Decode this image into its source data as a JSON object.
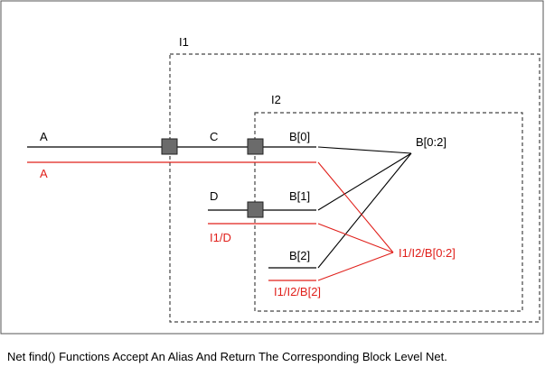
{
  "colors": {
    "black": "#000000",
    "red": "#e0201b",
    "port_fill": "#6b6b6b",
    "frame": "#555555"
  },
  "instances": {
    "outer": "I1",
    "inner": "I2"
  },
  "nets": {
    "a": "A",
    "c": "C",
    "d": "D",
    "b0": "B[0]",
    "b1": "B[1]",
    "b2": "B[2]",
    "bus": "B[0:2]"
  },
  "aliases": {
    "a": "A",
    "d": "I1/D",
    "b2": "I1/I2/B[2]",
    "bus": "I1/I2/B[0:2]"
  },
  "caption": "Net find() Functions Accept An Alias And Return The Corresponding Block Level Net."
}
